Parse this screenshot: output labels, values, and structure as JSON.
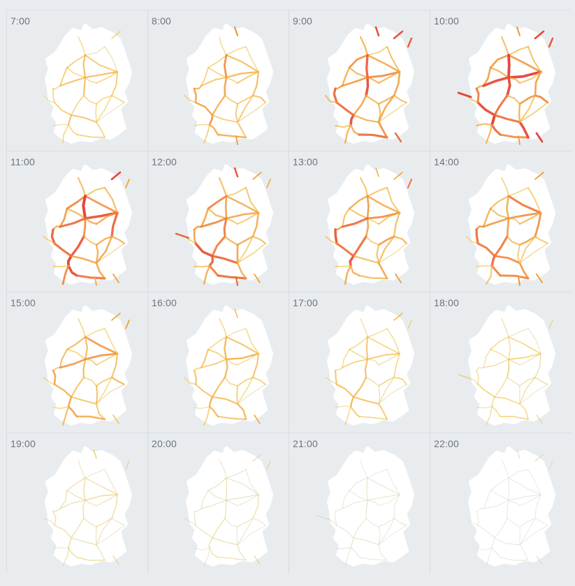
{
  "hours": [
    {
      "label": "7:00",
      "intensity": 0.4
    },
    {
      "label": "8:00",
      "intensity": 0.55
    },
    {
      "label": "9:00",
      "intensity": 0.8
    },
    {
      "label": "10:00",
      "intensity": 0.92
    },
    {
      "label": "11:00",
      "intensity": 0.85
    },
    {
      "label": "12:00",
      "intensity": 0.78
    },
    {
      "label": "13:00",
      "intensity": 0.72
    },
    {
      "label": "14:00",
      "intensity": 0.68
    },
    {
      "label": "15:00",
      "intensity": 0.58
    },
    {
      "label": "16:00",
      "intensity": 0.48
    },
    {
      "label": "17:00",
      "intensity": 0.4
    },
    {
      "label": "18:00",
      "intensity": 0.28
    },
    {
      "label": "19:00",
      "intensity": 0.22
    },
    {
      "label": "20:00",
      "intensity": 0.16
    },
    {
      "label": "21:00",
      "intensity": 0.09
    },
    {
      "label": "22:00",
      "intensity": 0.05
    }
  ],
  "colors": {
    "background": "#e9ecef",
    "country": "#ffffff",
    "line_low": "#c9d6d6",
    "line_mid": "#f1c84b",
    "line_high": "#f39a2e",
    "line_peak": "#e5433a"
  }
}
